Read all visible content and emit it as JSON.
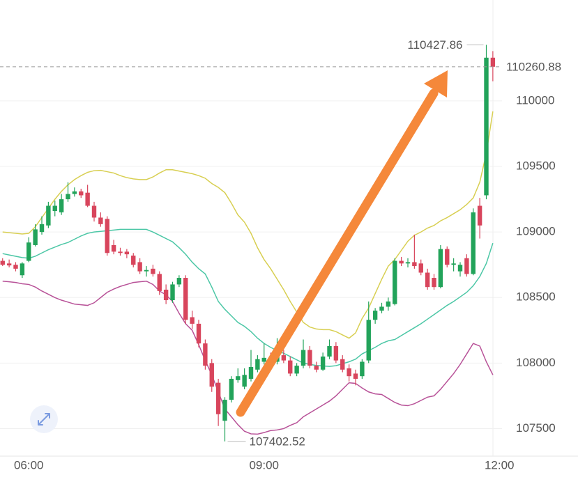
{
  "chart_data": {
    "type": "candlestick",
    "x": [
      "05:40",
      "05:45",
      "05:50",
      "05:55",
      "06:00",
      "06:05",
      "06:10",
      "06:15",
      "06:20",
      "06:25",
      "06:30",
      "06:35",
      "06:40",
      "06:45",
      "06:50",
      "06:55",
      "07:00",
      "07:05",
      "07:10",
      "07:15",
      "07:20",
      "07:25",
      "07:30",
      "07:35",
      "07:40",
      "07:45",
      "07:50",
      "07:55",
      "08:00",
      "08:05",
      "08:10",
      "08:15",
      "08:20",
      "08:25",
      "08:30",
      "08:35",
      "08:40",
      "08:45",
      "08:50",
      "08:55",
      "09:00",
      "09:05",
      "09:10",
      "09:15",
      "09:20",
      "09:25",
      "09:30",
      "09:35",
      "09:40",
      "09:45",
      "09:50",
      "09:55",
      "10:00",
      "10:05",
      "10:10",
      "10:15",
      "10:20",
      "10:25",
      "10:30",
      "10:35",
      "10:40",
      "10:45",
      "10:50",
      "10:55",
      "11:00",
      "11:05",
      "11:10",
      "11:15",
      "11:20",
      "11:25",
      "11:30",
      "11:35",
      "11:40",
      "11:45",
      "11:50",
      "11:55"
    ],
    "open": [
      108780,
      108760,
      108750,
      108670,
      108780,
      108900,
      109000,
      109050,
      109160,
      109150,
      109250,
      109290,
      109310,
      109300,
      109200,
      109110,
      109100,
      108900,
      108850,
      108850,
      108820,
      108770,
      108700,
      108720,
      108680,
      108560,
      108480,
      108600,
      108650,
      108350,
      108300,
      108150,
      108000,
      107850,
      107560,
      107720,
      107870,
      107820,
      107880,
      107950,
      108010,
      108040,
      108010,
      108060,
      108020,
      107920,
      107980,
      108100,
      107980,
      107950,
      108050,
      108130,
      108030,
      107960,
      107920,
      107900,
      108020,
      108330,
      108400,
      108430,
      108450,
      108780,
      108760,
      108770,
      108760,
      108690,
      108650,
      108580,
      108870,
      108750,
      108700,
      108800,
      108680,
      109200,
      109280,
      110330
    ],
    "high": [
      108800,
      108790,
      108770,
      108770,
      108960,
      109060,
      109120,
      109230,
      109240,
      109290,
      109380,
      109340,
      109330,
      109360,
      109230,
      109150,
      109120,
      108940,
      108880,
      108870,
      108840,
      108800,
      108740,
      108750,
      108700,
      108600,
      108620,
      108670,
      108670,
      108400,
      108330,
      108180,
      108030,
      107880,
      107740,
      107900,
      107960,
      107960,
      108100,
      108060,
      108150,
      108080,
      108190,
      108100,
      108050,
      108000,
      108180,
      108130,
      108010,
      108080,
      108180,
      108160,
      108060,
      107990,
      107950,
      108030,
      108470,
      108420,
      108460,
      108500,
      108800,
      108810,
      108800,
      108980,
      108790,
      108720,
      108680,
      108900,
      108890,
      108800,
      108770,
      108830,
      109180,
      109260,
      110427.86,
      110380
    ],
    "low": [
      108740,
      108730,
      108700,
      108650,
      108770,
      108890,
      108980,
      109030,
      109120,
      109130,
      109230,
      109270,
      109260,
      109190,
      109080,
      109040,
      108820,
      108830,
      108820,
      108800,
      108730,
      108680,
      108660,
      108660,
      108520,
      108450,
      108460,
      108580,
      108300,
      108260,
      108120,
      107950,
      107780,
      107520,
      107402.52,
      107700,
      107850,
      107800,
      107860,
      107930,
      107990,
      107990,
      107990,
      108000,
      107900,
      107900,
      107960,
      107960,
      107930,
      107940,
      108030,
      108000,
      107930,
      107860,
      107830,
      107880,
      108000,
      108300,
      108380,
      108400,
      108440,
      108740,
      108730,
      108720,
      108670,
      108560,
      108560,
      108570,
      108730,
      108700,
      108660,
      108660,
      108670,
      108950,
      109250,
      110150
    ],
    "close": [
      108750,
      108745,
      108720,
      108760,
      108920,
      109020,
      109060,
      109200,
      109200,
      109250,
      109290,
      109310,
      109280,
      109200,
      109110,
      109060,
      108840,
      108850,
      108840,
      108830,
      108750,
      108700,
      108710,
      108680,
      108550,
      108480,
      108600,
      108650,
      108330,
      108300,
      108150,
      107980,
      107820,
      107610,
      107720,
      107880,
      107900,
      107910,
      107970,
      108030,
      108040,
      108010,
      108060,
      108020,
      107920,
      107980,
      108100,
      107980,
      107950,
      108050,
      108130,
      108020,
      107950,
      107900,
      107880,
      108010,
      108330,
      108400,
      108430,
      108470,
      108780,
      108760,
      108770,
      108740,
      108690,
      108580,
      108580,
      108870,
      108750,
      108760,
      108750,
      108680,
      109150,
      109050,
      110330,
      110260.88
    ],
    "up_color": "#22a35a",
    "down_color": "#d8455c",
    "series": [
      {
        "color": "#d8cf52",
        "values": [
          109000,
          108995,
          108990,
          108985,
          108990,
          109040,
          109110,
          109180,
          109250,
          109310,
          109360,
          109400,
          109430,
          109455,
          109468,
          109470,
          109460,
          109450,
          109430,
          109415,
          109405,
          109400,
          109400,
          109420,
          109450,
          109475,
          109475,
          109465,
          109455,
          109445,
          109430,
          109410,
          109370,
          109340,
          109300,
          109220,
          109130,
          109075,
          108990,
          108880,
          108790,
          108720,
          108640,
          108560,
          108470,
          108390,
          108310,
          108275,
          108260,
          108255,
          108255,
          108240,
          108215,
          108190,
          108230,
          108340,
          108420,
          108530,
          108640,
          108740,
          108790,
          108860,
          108930,
          108975,
          109000,
          109030,
          109050,
          109085,
          109110,
          109140,
          109170,
          109210,
          109260,
          109380,
          109600,
          109920
        ]
      },
      {
        "color": "#4cc7a6",
        "values": [
          108835,
          108825,
          108815,
          108805,
          108800,
          108815,
          108840,
          108865,
          108885,
          108905,
          108920,
          108945,
          108970,
          108990,
          109000,
          109005,
          109010,
          109015,
          109020,
          109020,
          109020,
          109020,
          109020,
          109000,
          108975,
          108950,
          108925,
          108880,
          108830,
          108770,
          108720,
          108680,
          108580,
          108470,
          108410,
          108360,
          108310,
          108280,
          108240,
          108190,
          108150,
          108120,
          108095,
          108075,
          108050,
          108025,
          108000,
          107990,
          107982,
          107978,
          107975,
          107980,
          107995,
          108010,
          108030,
          108070,
          108095,
          108120,
          108150,
          108170,
          108180,
          108210,
          108240,
          108270,
          108300,
          108335,
          108370,
          108405,
          108440,
          108470,
          108505,
          108540,
          108590,
          108660,
          108760,
          108915
        ]
      },
      {
        "color": "#b85298",
        "values": [
          108625,
          108620,
          108615,
          108605,
          108600,
          108580,
          108550,
          108525,
          108500,
          108480,
          108465,
          108450,
          108445,
          108440,
          108460,
          108500,
          108540,
          108565,
          108585,
          108600,
          108615,
          108620,
          108625,
          108600,
          108550,
          108520,
          108470,
          108380,
          108300,
          108250,
          108140,
          108020,
          107910,
          107780,
          107650,
          107590,
          107530,
          107480,
          107460,
          107458,
          107470,
          107485,
          107490,
          107500,
          107525,
          107545,
          107590,
          107620,
          107650,
          107680,
          107710,
          107750,
          107800,
          107850,
          107845,
          107810,
          107780,
          107765,
          107760,
          107730,
          107700,
          107680,
          107675,
          107690,
          107715,
          107740,
          107750,
          107800,
          107860,
          107920,
          107990,
          108070,
          108150,
          108130,
          108010,
          107910
        ]
      }
    ],
    "ylim": [
      107290,
      110770
    ],
    "yticks": [
      107500,
      108000,
      108500,
      109000,
      109500,
      110000
    ],
    "xlim": [
      "05:38",
      "12:02"
    ],
    "xticks": [
      "06:00",
      "09:00",
      "12:00"
    ],
    "grid": true
  }
}
